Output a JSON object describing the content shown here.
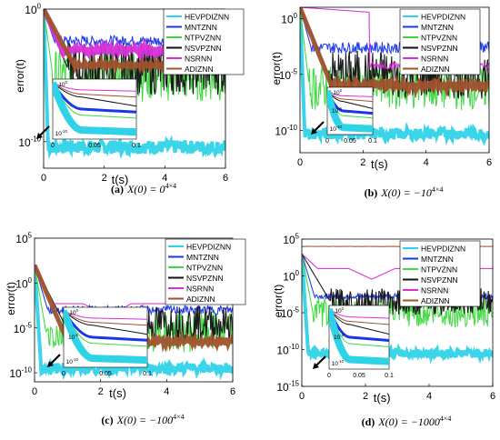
{
  "series_colors": {
    "HEVPDIZNN": "#2fd3e8",
    "MNTZNN": "#1a37e6",
    "NTPVZNN": "#3fd83f",
    "NSVPZNN": "#111111",
    "NSRNN": "#d92fd9",
    "ADIZNN": "#a0522d"
  },
  "chart_data": [
    {
      "type": "line",
      "panel": "a",
      "caption_letter": "(a)",
      "caption_body": "X(0) = 0",
      "caption_sup": "4×4",
      "title": "",
      "xlabel": "t(s)",
      "ylabel": "error(t)",
      "xlim": [
        0,
        6
      ],
      "ylog": true,
      "ylim_exp": [
        -12,
        0
      ],
      "xticks": [
        "0",
        "2",
        "4",
        "6"
      ],
      "yticks": [
        {
          "exp": 0,
          "label": "10",
          "sup": "0"
        },
        {
          "exp": -10,
          "label": "10",
          "sup": "-10"
        }
      ],
      "legend": [
        "HEVPDIZNN",
        "MNTZNN",
        "NTPVZNN",
        "NSVPZNN",
        "NSRNN",
        "ADIZNN"
      ],
      "series": [
        {
          "name": "HEVPDIZNN",
          "shape": "noise",
          "start_exp": 0,
          "drop_t": 0.15,
          "level_exp": -10.4,
          "amp": 0.5
        },
        {
          "name": "MNTZNN",
          "shape": "noise",
          "start_exp": 0,
          "drop_t": 0.35,
          "level_exp": -2.4,
          "amp": 0.4
        },
        {
          "name": "NTPVZNN",
          "shape": "noise",
          "start_exp": 0,
          "drop_t": 0.3,
          "level_exp": -5.0,
          "amp": 2.0
        },
        {
          "name": "NSVPZNN",
          "shape": "noise",
          "start_exp": 0,
          "drop_t": 0.8,
          "level_exp": -4.5,
          "amp": 2.0
        },
        {
          "name": "NSRNN",
          "shape": "band",
          "start_exp": 0,
          "drop_t": 0.6,
          "level_exp": -3.1,
          "amp": 0.3
        },
        {
          "name": "ADIZNN",
          "shape": "band",
          "start_exp": 0,
          "drop_t": 1.0,
          "level_exp": -4.2,
          "amp": 0.15
        }
      ],
      "inset": {
        "xticks": [
          "0",
          "0.05",
          "0.1"
        ],
        "yticks": [
          {
            "label": "10",
            "sup": "0"
          },
          {
            "label": "10",
            "sup": "-10"
          }
        ]
      }
    },
    {
      "type": "line",
      "panel": "b",
      "caption_letter": "(b)",
      "caption_body": "X(0) = −10",
      "caption_sup": "4×4",
      "title": "",
      "xlabel": "t(s)",
      "ylabel": "error(t)",
      "xlim": [
        0,
        6
      ],
      "ylog": true,
      "ylim_exp": [
        -12,
        1
      ],
      "xticks": [
        "0",
        "2",
        "4",
        "6"
      ],
      "yticks": [
        {
          "exp": 0,
          "label": "10",
          "sup": "0"
        },
        {
          "exp": -5,
          "label": "10",
          "sup": "-5"
        },
        {
          "exp": -10,
          "label": "10",
          "sup": "-10"
        }
      ],
      "legend": [
        "HEVPDIZNN",
        "MNTZNN",
        "NTPVZNN",
        "NSVPZNN",
        "NSRNN",
        "ADIZNN"
      ],
      "series": [
        {
          "name": "HEVPDIZNN",
          "shape": "noise",
          "start_exp": 1,
          "drop_t": 0.15,
          "level_exp": -10.3,
          "amp": 0.5
        },
        {
          "name": "MNTZNN",
          "shape": "noise",
          "start_exp": 1,
          "drop_t": 0.35,
          "level_exp": -2.6,
          "amp": 0.5
        },
        {
          "name": "NTPVZNN",
          "shape": "noise",
          "start_exp": 1,
          "drop_t": 0.3,
          "level_exp": -6.2,
          "amp": 2.0
        },
        {
          "name": "NSVPZNN",
          "shape": "noise",
          "start_exp": 1,
          "drop_t": 0.9,
          "level_exp": -5.0,
          "amp": 2.2
        },
        {
          "name": "NSRNN",
          "shape": "late",
          "start_exp": 1,
          "drop_t": 2.2,
          "level_exp": -4.2,
          "amp": 0.3
        },
        {
          "name": "ADIZNN",
          "shape": "band",
          "start_exp": 1,
          "drop_t": 1.0,
          "level_exp": -6.0,
          "amp": 0.4
        }
      ],
      "inset": {
        "xticks": [
          "0",
          "0.05",
          "0.1"
        ],
        "yticks": [
          {
            "label": "10",
            "sup": "0"
          },
          {
            "label": "10",
            "sup": "-5"
          },
          {
            "label": "10",
            "sup": "-10"
          }
        ]
      }
    },
    {
      "type": "line",
      "panel": "c",
      "caption_letter": "(c)",
      "caption_body": "X(0) = −100",
      "caption_sup": "4×4",
      "title": "",
      "xlabel": "t(s)",
      "ylabel": "error(t)",
      "xlim": [
        0,
        6
      ],
      "ylog": true,
      "ylim_exp": [
        -11,
        5
      ],
      "xticks": [
        "0",
        "2",
        "4",
        "6"
      ],
      "yticks": [
        {
          "exp": 5,
          "label": "10",
          "sup": "5"
        },
        {
          "exp": 0,
          "label": "10",
          "sup": "0"
        },
        {
          "exp": -5,
          "label": "10",
          "sup": "-5"
        },
        {
          "exp": -10,
          "label": "10",
          "sup": "-10"
        }
      ],
      "legend": [
        "HEVPDIZNN",
        "MNTZNN",
        "NTPVZNN",
        "NSVPZNN",
        "NSRNN",
        "ADIZNN"
      ],
      "series": [
        {
          "name": "HEVPDIZNN",
          "shape": "noise",
          "start_exp": 2,
          "drop_t": 0.2,
          "level_exp": -9.5,
          "amp": 0.6
        },
        {
          "name": "MNTZNN",
          "shape": "noise",
          "start_exp": 2,
          "drop_t": 0.4,
          "level_exp": -3.0,
          "amp": 0.5
        },
        {
          "name": "NTPVZNN",
          "shape": "noise",
          "start_exp": 2,
          "drop_t": 0.35,
          "level_exp": -5.5,
          "amp": 2.2
        },
        {
          "name": "NSVPZNN",
          "shape": "noise",
          "start_exp": 2,
          "drop_t": 0.9,
          "level_exp": -4.5,
          "amp": 2.0
        },
        {
          "name": "NSRNN",
          "shape": "dip",
          "start_exp": 2,
          "drop_t": 2.2,
          "level_exp": -2.3,
          "amp": 0.2
        },
        {
          "name": "ADIZNN",
          "shape": "band",
          "start_exp": 2,
          "drop_t": 1.0,
          "level_exp": -6.5,
          "amp": 0.3
        }
      ],
      "inset": {
        "xticks": [
          "0",
          "0.05",
          "0.1"
        ],
        "yticks": [
          {
            "label": "10",
            "sup": "0"
          },
          {
            "label": "10",
            "sup": "-5"
          },
          {
            "label": "10",
            "sup": "-10"
          }
        ]
      }
    },
    {
      "type": "line",
      "panel": "d",
      "caption_letter": "(d)",
      "caption_body": "X(0) = −1000",
      "caption_sup": "4×4",
      "title": "",
      "xlabel": "t(s)",
      "ylabel": "error(t)",
      "xlim": [
        0,
        6
      ],
      "ylog": true,
      "ylim_exp": [
        -15,
        5
      ],
      "xticks": [
        "0",
        "2",
        "4",
        "6"
      ],
      "yticks": [
        {
          "exp": 5,
          "label": "10",
          "sup": "5"
        },
        {
          "exp": 0,
          "label": "10",
          "sup": "0"
        },
        {
          "exp": -5,
          "label": "10",
          "sup": "-5"
        },
        {
          "exp": -10,
          "label": "10",
          "sup": "-10"
        },
        {
          "exp": -15,
          "label": "10",
          "sup": "-15"
        }
      ],
      "legend": [
        "HEVPDIZNN",
        "MNTZNN",
        "NTPVZNN",
        "NSVPZNN",
        "NSRNN",
        "ADIZNN"
      ],
      "series": [
        {
          "name": "HEVPDIZNN",
          "shape": "noise",
          "start_exp": 3,
          "drop_t": 0.2,
          "level_exp": -10.5,
          "amp": 0.6
        },
        {
          "name": "MNTZNN",
          "shape": "noise",
          "start_exp": 3,
          "drop_t": 0.4,
          "level_exp": -2.8,
          "amp": 0.4
        },
        {
          "name": "NTPVZNN",
          "shape": "noise",
          "start_exp": 3,
          "drop_t": 0.35,
          "level_exp": -5.0,
          "amp": 2.0
        },
        {
          "name": "NSVPZNN",
          "shape": "noise",
          "start_exp": 3,
          "drop_t": 0.9,
          "level_exp": -3.5,
          "amp": 1.8
        },
        {
          "name": "NSRNN",
          "shape": "dip",
          "start_exp": 3,
          "drop_t": 2.2,
          "level_exp": 1.0,
          "amp": 0.2
        },
        {
          "name": "ADIZNN",
          "shape": "flat",
          "start_exp": 4,
          "drop_t": 6,
          "level_exp": 4.0,
          "amp": 0.05
        }
      ],
      "inset": {
        "xticks": [
          "0",
          "0.05",
          "0.1"
        ],
        "yticks": [
          {
            "label": "10",
            "sup": "0"
          },
          {
            "label": "10",
            "sup": "-5"
          },
          {
            "label": "10",
            "sup": "-10"
          }
        ]
      }
    }
  ]
}
